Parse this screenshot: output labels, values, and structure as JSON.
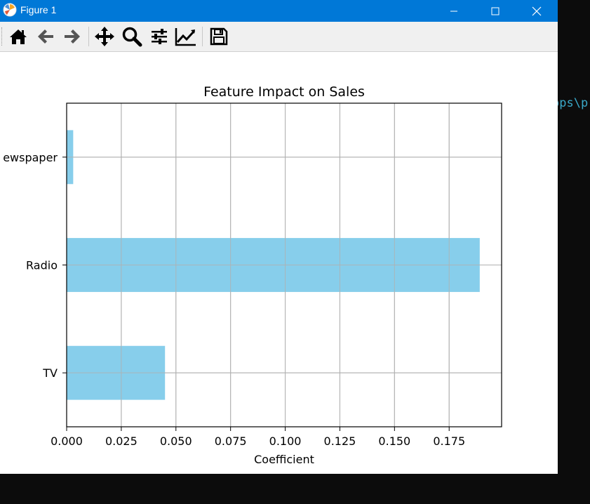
{
  "window": {
    "title": "Figure 1",
    "titlebar_color": "#0078d7"
  },
  "terminal": {
    "visible_text": "ops\\p"
  },
  "toolbar": {
    "tools": [
      {
        "name": "home-icon"
      },
      {
        "name": "back-arrow-icon"
      },
      {
        "name": "forward-arrow-icon"
      },
      {
        "name": "pan-icon"
      },
      {
        "name": "zoom-icon"
      },
      {
        "name": "subplots-config-icon"
      },
      {
        "name": "edit-axis-icon"
      },
      {
        "name": "save-icon"
      }
    ]
  },
  "chart_data": {
    "type": "bar",
    "orientation": "horizontal",
    "title": "Feature Impact on Sales",
    "xlabel": "Coefficient",
    "ylabel": "",
    "categories": [
      "Newspaper",
      "Radio",
      "TV"
    ],
    "category_labels_visible": [
      "ewspaper",
      "Radio",
      "TV"
    ],
    "values": [
      0.003,
      0.189,
      0.045
    ],
    "xlim": [
      0.0,
      0.199
    ],
    "xticks": [
      "0.000",
      "0.025",
      "0.050",
      "0.075",
      "0.100",
      "0.125",
      "0.150",
      "0.175"
    ],
    "grid": true,
    "bar_color": "#87ceeb"
  }
}
